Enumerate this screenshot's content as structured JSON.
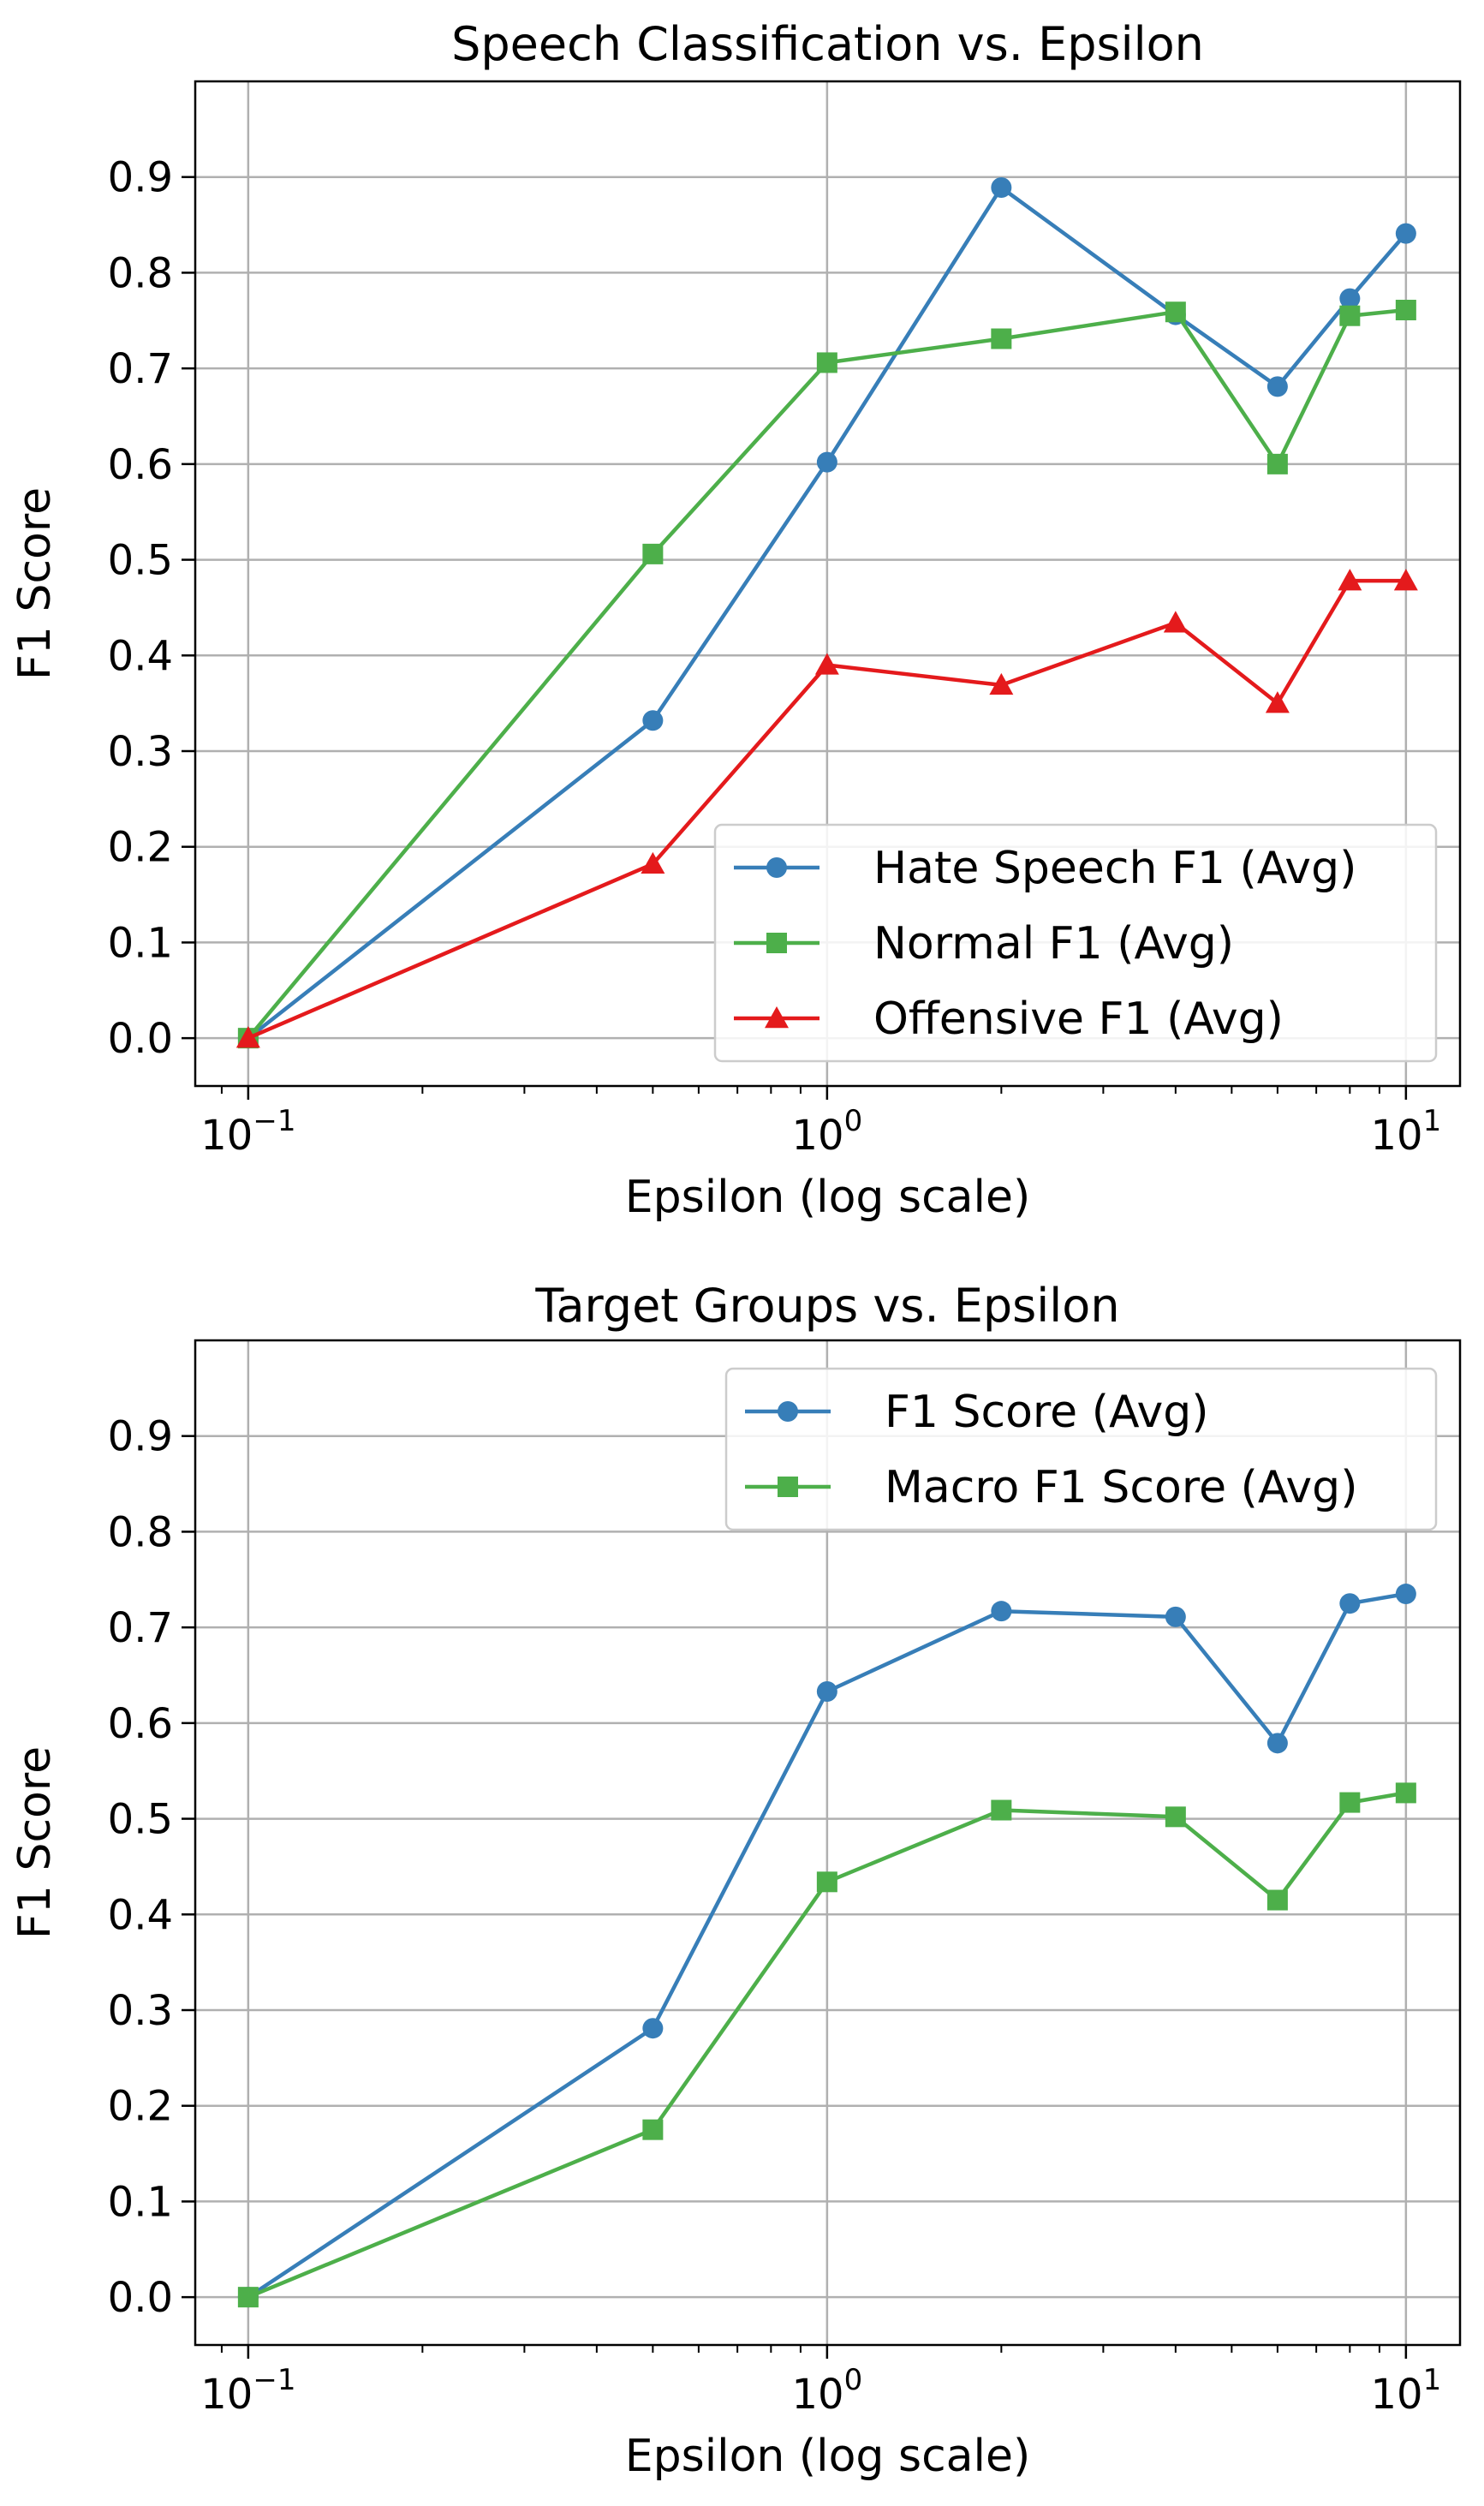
{
  "chart_data": [
    {
      "type": "line",
      "title": "Speech Classification vs. Epsilon",
      "xlabel": "Epsilon (log scale)",
      "ylabel": "F1 Score",
      "xscale": "log",
      "xlim": [
        0.081,
        12.4
      ],
      "ylim": [
        -0.05,
        1.0
      ],
      "xticks": [
        {
          "value": 0.1,
          "base": "10",
          "exp": "−1"
        },
        {
          "value": 1,
          "base": "10",
          "exp": "0"
        },
        {
          "value": 10,
          "base": "10",
          "exp": "1"
        }
      ],
      "yticks": [
        "0.0",
        "0.1",
        "0.2",
        "0.3",
        "0.4",
        "0.5",
        "0.6",
        "0.7",
        "0.8",
        "0.9"
      ],
      "grid": true,
      "legend_position": "lower-right",
      "x": [
        0.1,
        0.5,
        1,
        2,
        4,
        6,
        8,
        10
      ],
      "series": [
        {
          "name": "Hate Speech F1 (Avg)",
          "color": "#377eb8",
          "marker": "circle",
          "values": [
            0.0,
            0.332,
            0.602,
            0.889,
            0.756,
            0.681,
            0.773,
            0.841
          ]
        },
        {
          "name": "Normal F1 (Avg)",
          "color": "#4daf4a",
          "marker": "square",
          "values": [
            0.0,
            0.506,
            0.706,
            0.731,
            0.759,
            0.6,
            0.755,
            0.761
          ]
        },
        {
          "name": "Offensive F1 (Avg)",
          "color": "#e41a1c",
          "marker": "triangle",
          "values": [
            0.0,
            0.182,
            0.39,
            0.369,
            0.434,
            0.35,
            0.478,
            0.478
          ]
        }
      ]
    },
    {
      "type": "line",
      "title": "Target Groups vs. Epsilon",
      "xlabel": "Epsilon (log scale)",
      "ylabel": "F1 Score",
      "xscale": "log",
      "xlim": [
        0.081,
        12.4
      ],
      "ylim": [
        -0.05,
        1.0
      ],
      "xticks": [
        {
          "value": 0.1,
          "base": "10",
          "exp": "−1"
        },
        {
          "value": 1,
          "base": "10",
          "exp": "0"
        },
        {
          "value": 10,
          "base": "10",
          "exp": "1"
        }
      ],
      "yticks": [
        "0.0",
        "0.1",
        "0.2",
        "0.3",
        "0.4",
        "0.5",
        "0.6",
        "0.7",
        "0.8",
        "0.9"
      ],
      "grid": true,
      "legend_position": "upper-right",
      "x": [
        0.1,
        0.5,
        1,
        2,
        4,
        6,
        8,
        10
      ],
      "series": [
        {
          "name": "F1 Score (Avg)",
          "color": "#377eb8",
          "marker": "circle",
          "values": [
            0.0,
            0.281,
            0.633,
            0.717,
            0.711,
            0.579,
            0.725,
            0.735
          ]
        },
        {
          "name": "Macro F1 Score (Avg)",
          "color": "#4daf4a",
          "marker": "square",
          "values": [
            0.0,
            0.175,
            0.434,
            0.509,
            0.502,
            0.415,
            0.517,
            0.527
          ]
        }
      ]
    }
  ]
}
